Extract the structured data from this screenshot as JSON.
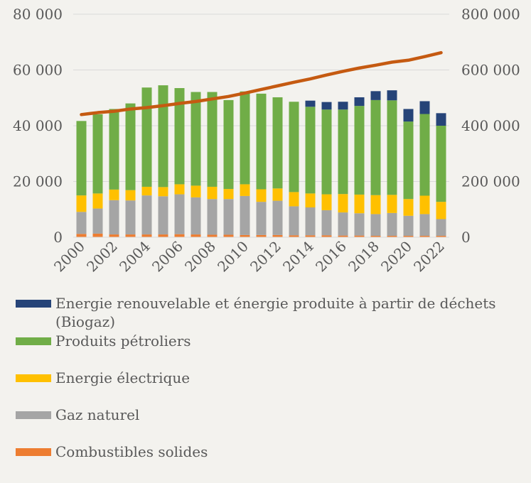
{
  "chart_data": {
    "type": "bar",
    "stacked": true,
    "categories": [
      "2000",
      "2001",
      "2002",
      "2003",
      "2004",
      "2005",
      "2006",
      "2007",
      "2008",
      "2009",
      "2010",
      "2011",
      "2012",
      "2013",
      "2014",
      "2015",
      "2016",
      "2017",
      "2018",
      "2019",
      "2020",
      "2021",
      "2022"
    ],
    "x_tick_labels": [
      "2000",
      "2002",
      "2004",
      "2006",
      "2008",
      "2010",
      "2012",
      "2014",
      "2016",
      "2018",
      "2020",
      "2022"
    ],
    "y_left": {
      "ylim": [
        0,
        80000
      ],
      "ticks": [
        0,
        20000,
        40000,
        60000,
        80000
      ],
      "tick_labels": [
        "0",
        "20 000",
        "40 000",
        "60 000",
        "80 000"
      ]
    },
    "y_right": {
      "ylim": [
        0,
        800000
      ],
      "ticks": [
        0,
        200000,
        400000,
        600000,
        800000
      ],
      "tick_labels": [
        "0",
        "200 000",
        "400 000",
        "600 000",
        "800 000"
      ]
    },
    "grid": true,
    "legend_position": "bottom",
    "series": [
      {
        "name": "Combustibles solides",
        "color": "#ed7d31",
        "values": [
          1200,
          1300,
          1000,
          1000,
          1000,
          1000,
          1100,
          1000,
          900,
          900,
          800,
          800,
          800,
          700,
          700,
          700,
          600,
          600,
          500,
          500,
          500,
          500,
          500
        ]
      },
      {
        "name": "Gaz naturel",
        "color": "#a5a5a5",
        "values": [
          7900,
          9000,
          12300,
          12200,
          14000,
          13700,
          14300,
          13300,
          12800,
          12800,
          14000,
          11900,
          12300,
          10400,
          10000,
          9000,
          8300,
          8000,
          7800,
          8200,
          7200,
          7800,
          6000
        ]
      },
      {
        "name": "Energie électrique",
        "color": "#ffc000",
        "values": [
          5900,
          5400,
          3800,
          3700,
          3100,
          3300,
          3600,
          4200,
          4400,
          3600,
          4200,
          4500,
          4400,
          5100,
          5000,
          5700,
          6600,
          6700,
          6800,
          6500,
          6000,
          6600,
          6200
        ]
      },
      {
        "name": "Produits pétroliers",
        "color": "#70ad47",
        "values": [
          26700,
          28400,
          28900,
          31100,
          35600,
          36500,
          34500,
          33600,
          34000,
          31900,
          33300,
          34300,
          32700,
          32400,
          31100,
          30400,
          30300,
          31800,
          34100,
          33900,
          27800,
          29300,
          27300
        ]
      },
      {
        "name": "Energie renouvelable et énergie produite à partir de déchets (Biogaz)",
        "color": "#264478",
        "values": [
          0,
          0,
          0,
          0,
          0,
          0,
          0,
          0,
          0,
          0,
          0,
          0,
          0,
          0,
          2200,
          2700,
          2800,
          3100,
          3200,
          3600,
          4500,
          4600,
          4500
        ]
      }
    ],
    "line_series": {
      "axis": "right",
      "color": "#c55a11",
      "values": [
        440000,
        447000,
        452000,
        460000,
        465000,
        472000,
        480000,
        487000,
        496000,
        505000,
        517000,
        530000,
        543000,
        556000,
        568000,
        582000,
        595000,
        607000,
        617000,
        628000,
        635000,
        648000,
        662000
      ]
    }
  }
}
